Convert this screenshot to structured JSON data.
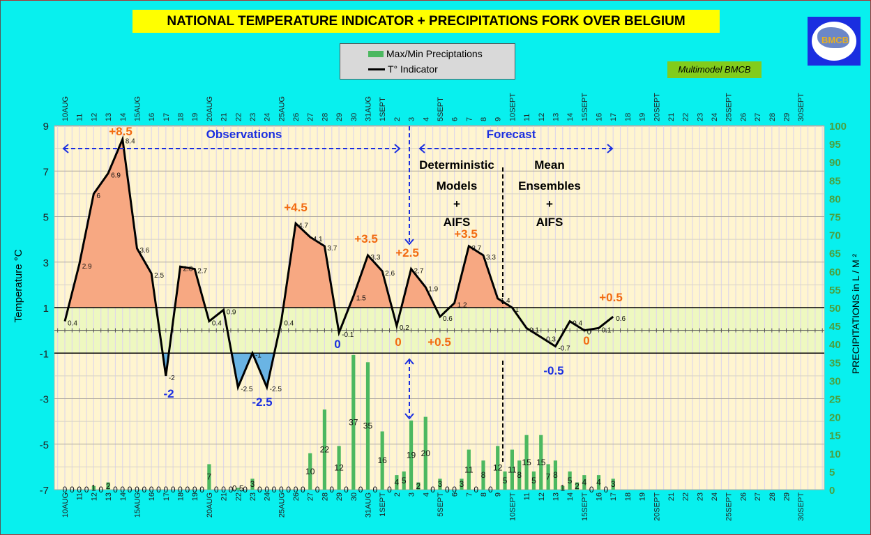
{
  "title": "NATIONAL TEMPERATURE INDICATOR + PRECIPITATIONS FORK OVER  BELGIUM",
  "legend": {
    "precip": "Max/Min Preciptations",
    "temp": "T° Indicator"
  },
  "badge": "Multimodel BMCB",
  "logo_text": "BMCB",
  "colors": {
    "background": "#08f0ee",
    "plot": "#fff5d0",
    "band": "#eef8c0",
    "warm": "#f7a882",
    "cold": "#6ab4e4",
    "bars": "#4cb860",
    "orange": "#f26a10",
    "blue": "#1a2ee0",
    "right_axis": "#4aa040"
  },
  "chart_data": {
    "type": "line+bar",
    "title": "NATIONAL TEMPERATURE INDICATOR + PRECIPITATIONS FORK OVER  BELGIUM",
    "ylabel": "Temperature   °C",
    "y2label": "PRECIPITATIONS in L / M ²",
    "ylim": [
      -7,
      9
    ],
    "y2lim": [
      0,
      100
    ],
    "yticks": [
      "9",
      "7",
      "5",
      "3",
      "1",
      "-1",
      "-3",
      "-5",
      "-7"
    ],
    "y2ticks": [
      "100",
      "95",
      "90",
      "85",
      "80",
      "75",
      "70",
      "65",
      "60",
      "55",
      "50",
      "45",
      "40",
      "35",
      "30",
      "25",
      "20",
      "15",
      "10",
      "5",
      "0"
    ],
    "xticks": [
      "10AUG",
      "11",
      "12",
      "13",
      "14",
      "15AUG",
      "16",
      "17",
      "18",
      "19",
      "20AUG",
      "21",
      "22",
      "23",
      "24",
      "25AUG",
      "26",
      "27",
      "28",
      "29",
      "30",
      "31AUG",
      "1SEPT",
      "2",
      "3",
      "4",
      "5SEPT",
      "6",
      "7",
      "8",
      "9",
      "10SEPT",
      "11",
      "12",
      "13",
      "14",
      "15SEPT",
      "16",
      "17",
      "18",
      "19",
      "20SEPT",
      "21",
      "22",
      "23",
      "24",
      "25SEPT",
      "26",
      "27",
      "28",
      "29",
      "30SEPT"
    ],
    "series": [
      {
        "name": "T° Indicator",
        "type": "line",
        "values": [
          0.4,
          2.9,
          6,
          6.9,
          8.4,
          3.6,
          2.5,
          -2,
          2.8,
          2.7,
          0.4,
          0.9,
          -2.5,
          -1,
          -2.5,
          0.4,
          4.7,
          4.1,
          3.7,
          -0.1,
          1.5,
          3.3,
          2.6,
          0.2,
          2.7,
          1.9,
          0.6,
          1.2,
          3.7,
          3.3,
          1.4,
          1,
          0.1,
          -0.3,
          -0.7,
          0.4,
          0,
          0.1,
          0.6
        ]
      },
      {
        "name": "Max/Min Preciptations",
        "type": "bar",
        "step": "half-day",
        "values": [
          0,
          0,
          0,
          0,
          1,
          0,
          2,
          0,
          0,
          0,
          0,
          0,
          0,
          0,
          0,
          0,
          0,
          0,
          0,
          0,
          7,
          0,
          0,
          0,
          0.5,
          0,
          3,
          0,
          0,
          0,
          0,
          0,
          0,
          0,
          10,
          0,
          22,
          0,
          12,
          0,
          37,
          0,
          35,
          0,
          16,
          0,
          4,
          5,
          19,
          2,
          20,
          0,
          3,
          0,
          0,
          3,
          11,
          0,
          8,
          0,
          12,
          5,
          11,
          8,
          15,
          5,
          15,
          7,
          8,
          1,
          5,
          2,
          4,
          0,
          4,
          0,
          3
        ]
      }
    ],
    "reference_lines": [
      1,
      -1
    ],
    "annotations": [
      "+8.5",
      "-2",
      "-2.5",
      "+4.5",
      "0",
      "+3.5",
      "+2.5",
      "0",
      "+0.5",
      "+3.5",
      "-0.5",
      "0",
      "+0.5"
    ],
    "section_labels": {
      "observations": "Observations",
      "forecast": "Forecast",
      "deterministic": [
        "Deterministic",
        "Models",
        "+",
        "AIFS"
      ],
      "ensembles": [
        "Mean",
        "Ensembles",
        "+",
        "AIFS"
      ]
    }
  }
}
